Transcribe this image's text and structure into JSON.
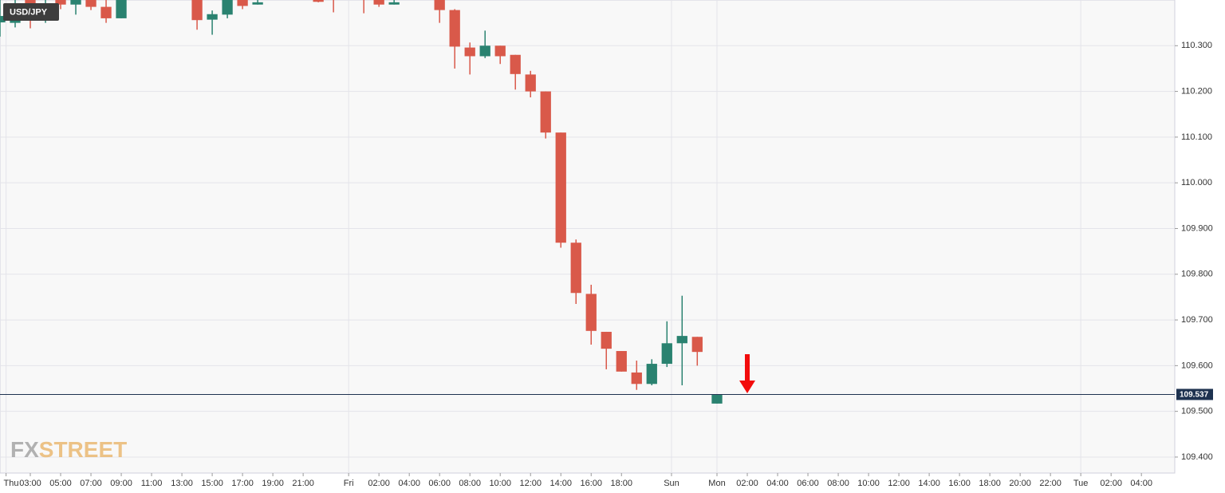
{
  "chart_data": {
    "type": "candlestick",
    "title": "USD/JPY",
    "watermark": [
      "FX",
      "STREET"
    ],
    "up_color": "#2a8270",
    "down_color": "#d9594a",
    "last_price": 109.537,
    "xlim": [
      1,
      78.5
    ],
    "ylim": [
      109.365,
      110.4
    ],
    "yticks": [
      {
        "value": 109.4,
        "label": "109.400"
      },
      {
        "value": 109.5,
        "label": "109.500"
      },
      {
        "value": 109.6,
        "label": "109.600"
      },
      {
        "value": 109.7,
        "label": "109.700"
      },
      {
        "value": 109.8,
        "label": "109.800"
      },
      {
        "value": 109.9,
        "label": "109.900"
      },
      {
        "value": 110.0,
        "label": "110.000"
      },
      {
        "value": 110.1,
        "label": "110.100"
      },
      {
        "value": 110.2,
        "label": "110.200"
      },
      {
        "value": 110.3,
        "label": "110.300"
      }
    ],
    "xticks": [
      {
        "value": 1.4,
        "label": "Thu"
      },
      {
        "value": 3,
        "label": "03:00"
      },
      {
        "value": 5,
        "label": "05:00"
      },
      {
        "value": 7,
        "label": "07:00"
      },
      {
        "value": 9,
        "label": "09:00"
      },
      {
        "value": 11,
        "label": "11:00"
      },
      {
        "value": 13,
        "label": "13:00"
      },
      {
        "value": 15,
        "label": "15:00"
      },
      {
        "value": 17,
        "label": "17:00"
      },
      {
        "value": 19,
        "label": "19:00"
      },
      {
        "value": 21,
        "label": "21:00"
      },
      {
        "value": 24,
        "label": "Fri"
      },
      {
        "value": 26,
        "label": "02:00"
      },
      {
        "value": 28,
        "label": "04:00"
      },
      {
        "value": 30,
        "label": "06:00"
      },
      {
        "value": 32,
        "label": "08:00"
      },
      {
        "value": 34,
        "label": "10:00"
      },
      {
        "value": 36,
        "label": "12:00"
      },
      {
        "value": 38,
        "label": "14:00"
      },
      {
        "value": 40,
        "label": "16:00"
      },
      {
        "value": 42,
        "label": "18:00"
      },
      {
        "value": 45.3,
        "label": "Sun"
      },
      {
        "value": 48.3,
        "label": "Mon"
      },
      {
        "value": 50.3,
        "label": "02:00"
      },
      {
        "value": 52.3,
        "label": "04:00"
      },
      {
        "value": 54.3,
        "label": "06:00"
      },
      {
        "value": 56.3,
        "label": "08:00"
      },
      {
        "value": 58.3,
        "label": "10:00"
      },
      {
        "value": 60.3,
        "label": "12:00"
      },
      {
        "value": 62.3,
        "label": "14:00"
      },
      {
        "value": 64.3,
        "label": "16:00"
      },
      {
        "value": 66.3,
        "label": "18:00"
      },
      {
        "value": 68.3,
        "label": "20:00"
      },
      {
        "value": 70.3,
        "label": "22:00"
      },
      {
        "value": 72.3,
        "label": "Tue"
      },
      {
        "value": 74.3,
        "label": "02:00"
      },
      {
        "value": 76.3,
        "label": "04:00"
      }
    ],
    "x": [
      1,
      2,
      3,
      4,
      5,
      6,
      7,
      8,
      9,
      14,
      15,
      16,
      17,
      18,
      22,
      23,
      25,
      26,
      27,
      30,
      31,
      32,
      33,
      34,
      35,
      36,
      37,
      38,
      39,
      40,
      41,
      42,
      43,
      44,
      45,
      46,
      47,
      48.3
    ],
    "open": [
      110.351,
      110.35,
      110.4,
      110.357,
      110.41,
      110.39,
      110.41,
      110.385,
      110.36,
      110.42,
      110.357,
      110.368,
      110.41,
      110.39,
      110.4,
      110.41,
      110.41,
      110.405,
      110.39,
      110.42,
      110.378,
      110.296,
      110.277,
      110.3,
      110.28,
      110.237,
      110.2,
      110.11,
      109.869,
      109.757,
      109.674,
      109.632,
      109.585,
      109.56,
      109.604,
      109.649,
      109.663,
      109.517
    ],
    "high": [
      110.4,
      110.4,
      110.41,
      110.41,
      110.42,
      110.42,
      110.42,
      110.4,
      110.42,
      110.43,
      110.377,
      110.42,
      110.42,
      110.4,
      110.41,
      110.42,
      110.42,
      110.42,
      110.41,
      110.43,
      110.38,
      110.307,
      110.333,
      110.3,
      110.28,
      110.245,
      110.2,
      110.11,
      109.876,
      109.777,
      109.674,
      109.632,
      109.611,
      109.614,
      109.697,
      109.753,
      109.663,
      109.536
    ],
    "low": [
      110.32,
      110.34,
      110.338,
      110.35,
      110.38,
      110.368,
      110.378,
      110.35,
      110.36,
      110.335,
      110.324,
      110.36,
      110.38,
      110.39,
      110.395,
      110.373,
      110.371,
      110.385,
      110.39,
      110.35,
      110.25,
      110.237,
      110.273,
      110.26,
      110.204,
      110.187,
      110.097,
      109.858,
      109.735,
      109.646,
      109.592,
      109.587,
      109.547,
      109.557,
      109.597,
      109.557,
      109.6,
      109.517
    ],
    "close": [
      110.365,
      110.366,
      110.357,
      110.382,
      110.39,
      110.4,
      110.385,
      110.36,
      110.41,
      110.356,
      110.369,
      110.41,
      110.387,
      110.395,
      110.396,
      110.4,
      110.405,
      110.39,
      110.395,
      110.378,
      110.298,
      110.277,
      110.3,
      110.277,
      110.238,
      110.2,
      110.11,
      109.869,
      109.759,
      109.676,
      109.637,
      109.587,
      109.56,
      109.604,
      109.649,
      109.665,
      109.63,
      109.536
    ]
  }
}
